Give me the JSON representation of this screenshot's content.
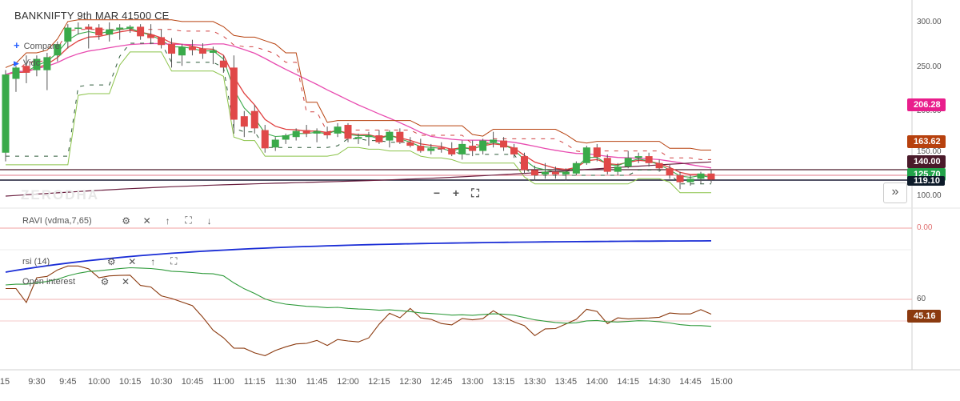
{
  "title": "BANKNIFTY 9th MAR 41500 CE",
  "toolbar": {
    "compare_label": "Compare",
    "indicator_label": "Vidc"
  },
  "watermark": "ZERODHA",
  "zoom": {
    "minus": "−",
    "plus": "+",
    "reset": "⛶"
  },
  "scroll_button": "»",
  "price_axis": {
    "ticks": [
      {
        "value": 300,
        "label": "300.00"
      },
      {
        "value": 250,
        "label": "250.00"
      },
      {
        "value": 200,
        "label": "200.00"
      },
      {
        "value": 150,
        "label": "150.00"
      },
      {
        "value": 100,
        "label": "100.00"
      }
    ]
  },
  "price_tags": [
    {
      "label": "206.28",
      "value": 206.28,
      "color": "#e91e8c"
    },
    {
      "label": "163.62",
      "value": 163.62,
      "color": "#b7410e"
    },
    {
      "label": "140.00",
      "value": 140.0,
      "color": "#4a1a2a"
    },
    {
      "label": "125.70",
      "value": 125.7,
      "color": "#22a34a"
    },
    {
      "label": "119.10",
      "value": 119.1,
      "color": "#0d1b2a"
    }
  ],
  "indicators": [
    {
      "name": "RAVI (vdma,7,65)",
      "controls": [
        "gear-icon",
        "close-icon",
        "up-icon",
        "expand-icon",
        "down-icon"
      ]
    },
    {
      "name": "rsi (14)",
      "controls": [
        "gear-icon",
        "close-icon",
        "up-icon",
        "expand-icon"
      ]
    },
    {
      "name": "Open interest",
      "controls": [
        "gear-icon",
        "close-icon"
      ]
    }
  ],
  "ravi_axis": {
    "label": "0.00",
    "value": 0
  },
  "rsi_axis": {
    "label": "60",
    "value": 60
  },
  "rsi_tag": {
    "label": "45.16",
    "value": 45.16,
    "color": "#8b3a0f"
  },
  "time_axis": [
    "15",
    "9:30",
    "9:45",
    "10:00",
    "10:15",
    "10:30",
    "10:45",
    "11:00",
    "11:15",
    "11:30",
    "11:45",
    "12:00",
    "12:15",
    "12:30",
    "12:45",
    "13:00",
    "13:15",
    "13:30",
    "13:45",
    "14:00",
    "14:15",
    "14:30",
    "14:45",
    "15:00"
  ],
  "chart_data": {
    "type": "candlestick",
    "title": "BANKNIFTY 9th MAR 41500 CE",
    "interval_minutes": 5,
    "ylim": [
      95,
      320
    ],
    "candles": [
      {
        "t": "9:15",
        "o": 150,
        "h": 245,
        "l": 140,
        "c": 240
      },
      {
        "t": "9:20",
        "o": 235,
        "h": 250,
        "l": 220,
        "c": 248
      },
      {
        "t": "9:25",
        "o": 250,
        "h": 262,
        "l": 230,
        "c": 242
      },
      {
        "t": "9:30",
        "o": 245,
        "h": 262,
        "l": 238,
        "c": 258
      },
      {
        "t": "9:35",
        "o": 245,
        "h": 265,
        "l": 222,
        "c": 260
      },
      {
        "t": "9:40",
        "o": 262,
        "h": 278,
        "l": 255,
        "c": 275
      },
      {
        "t": "9:45",
        "o": 278,
        "h": 298,
        "l": 270,
        "c": 294
      },
      {
        "t": "9:50",
        "o": 293,
        "h": 300,
        "l": 286,
        "c": 294
      },
      {
        "t": "9:55",
        "o": 295,
        "h": 298,
        "l": 270,
        "c": 292
      },
      {
        "t": "10:00",
        "o": 294,
        "h": 298,
        "l": 280,
        "c": 285
      },
      {
        "t": "10:05",
        "o": 286,
        "h": 300,
        "l": 278,
        "c": 292
      },
      {
        "t": "10:10",
        "o": 292,
        "h": 298,
        "l": 280,
        "c": 294
      },
      {
        "t": "10:15",
        "o": 293,
        "h": 297,
        "l": 288,
        "c": 295
      },
      {
        "t": "10:20",
        "o": 295,
        "h": 298,
        "l": 280,
        "c": 284
      },
      {
        "t": "10:25",
        "o": 286,
        "h": 298,
        "l": 275,
        "c": 282
      },
      {
        "t": "10:30",
        "o": 283,
        "h": 292,
        "l": 270,
        "c": 274
      },
      {
        "t": "10:35",
        "o": 275,
        "h": 282,
        "l": 248,
        "c": 264
      },
      {
        "t": "10:40",
        "o": 262,
        "h": 275,
        "l": 250,
        "c": 272
      },
      {
        "t": "10:45",
        "o": 272,
        "h": 280,
        "l": 262,
        "c": 268
      },
      {
        "t": "10:50",
        "o": 270,
        "h": 276,
        "l": 258,
        "c": 264
      },
      {
        "t": "10:55",
        "o": 265,
        "h": 272,
        "l": 252,
        "c": 268
      },
      {
        "t": "11:00",
        "o": 256,
        "h": 262,
        "l": 242,
        "c": 248
      },
      {
        "t": "11:05",
        "o": 248,
        "h": 262,
        "l": 172,
        "c": 188
      },
      {
        "t": "11:10",
        "o": 192,
        "h": 198,
        "l": 168,
        "c": 180
      },
      {
        "t": "11:15",
        "o": 198,
        "h": 205,
        "l": 172,
        "c": 178
      },
      {
        "t": "11:20",
        "o": 176,
        "h": 182,
        "l": 150,
        "c": 155
      },
      {
        "t": "11:25",
        "o": 156,
        "h": 168,
        "l": 152,
        "c": 165
      },
      {
        "t": "11:30",
        "o": 165,
        "h": 172,
        "l": 160,
        "c": 170
      },
      {
        "t": "11:35",
        "o": 168,
        "h": 178,
        "l": 164,
        "c": 175
      },
      {
        "t": "11:40",
        "o": 176,
        "h": 182,
        "l": 168,
        "c": 172
      },
      {
        "t": "11:45",
        "o": 172,
        "h": 178,
        "l": 162,
        "c": 175
      },
      {
        "t": "11:50",
        "o": 174,
        "h": 180,
        "l": 166,
        "c": 170
      },
      {
        "t": "11:55",
        "o": 172,
        "h": 184,
        "l": 168,
        "c": 180
      },
      {
        "t": "12:00",
        "o": 182,
        "h": 184,
        "l": 162,
        "c": 166
      },
      {
        "t": "12:05",
        "o": 166,
        "h": 172,
        "l": 160,
        "c": 168
      },
      {
        "t": "12:10",
        "o": 168,
        "h": 174,
        "l": 158,
        "c": 170
      },
      {
        "t": "12:15",
        "o": 170,
        "h": 176,
        "l": 160,
        "c": 162
      },
      {
        "t": "12:20",
        "o": 164,
        "h": 176,
        "l": 156,
        "c": 174
      },
      {
        "t": "12:25",
        "o": 174,
        "h": 178,
        "l": 160,
        "c": 162
      },
      {
        "t": "12:30",
        "o": 162,
        "h": 168,
        "l": 156,
        "c": 158
      },
      {
        "t": "12:35",
        "o": 158,
        "h": 166,
        "l": 150,
        "c": 152
      },
      {
        "t": "12:40",
        "o": 152,
        "h": 160,
        "l": 148,
        "c": 155
      },
      {
        "t": "12:45",
        "o": 156,
        "h": 162,
        "l": 150,
        "c": 154
      },
      {
        "t": "12:50",
        "o": 155,
        "h": 162,
        "l": 146,
        "c": 148
      },
      {
        "t": "12:55",
        "o": 148,
        "h": 164,
        "l": 142,
        "c": 160
      },
      {
        "t": "13:00",
        "o": 158,
        "h": 164,
        "l": 146,
        "c": 152
      },
      {
        "t": "13:05",
        "o": 152,
        "h": 166,
        "l": 148,
        "c": 164
      },
      {
        "t": "13:10",
        "o": 162,
        "h": 174,
        "l": 156,
        "c": 165
      },
      {
        "t": "13:15",
        "o": 164,
        "h": 168,
        "l": 152,
        "c": 156
      },
      {
        "t": "13:20",
        "o": 156,
        "h": 160,
        "l": 144,
        "c": 148
      },
      {
        "t": "13:25",
        "o": 146,
        "h": 150,
        "l": 126,
        "c": 130
      },
      {
        "t": "13:30",
        "o": 130,
        "h": 135,
        "l": 118,
        "c": 124
      },
      {
        "t": "13:35",
        "o": 125,
        "h": 138,
        "l": 120,
        "c": 128
      },
      {
        "t": "13:40",
        "o": 128,
        "h": 134,
        "l": 120,
        "c": 125
      },
      {
        "t": "13:45",
        "o": 125,
        "h": 132,
        "l": 118,
        "c": 128
      },
      {
        "t": "13:50",
        "o": 126,
        "h": 140,
        "l": 124,
        "c": 138
      },
      {
        "t": "13:55",
        "o": 138,
        "h": 158,
        "l": 136,
        "c": 156
      },
      {
        "t": "14:00",
        "o": 156,
        "h": 160,
        "l": 140,
        "c": 145
      },
      {
        "t": "14:05",
        "o": 144,
        "h": 148,
        "l": 125,
        "c": 128
      },
      {
        "t": "14:10",
        "o": 128,
        "h": 138,
        "l": 124,
        "c": 134
      },
      {
        "t": "14:15",
        "o": 134,
        "h": 152,
        "l": 132,
        "c": 144
      },
      {
        "t": "14:20",
        "o": 144,
        "h": 150,
        "l": 138,
        "c": 146
      },
      {
        "t": "14:25",
        "o": 146,
        "h": 150,
        "l": 134,
        "c": 138
      },
      {
        "t": "14:30",
        "o": 138,
        "h": 142,
        "l": 128,
        "c": 132
      },
      {
        "t": "14:35",
        "o": 132,
        "h": 136,
        "l": 120,
        "c": 124
      },
      {
        "t": "14:40",
        "o": 124,
        "h": 128,
        "l": 108,
        "c": 116
      },
      {
        "t": "14:45",
        "o": 116,
        "h": 124,
        "l": 112,
        "c": 120
      },
      {
        "t": "14:50",
        "o": 120,
        "h": 128,
        "l": 114,
        "c": 126
      },
      {
        "t": "14:55",
        "o": 126,
        "h": 130,
        "l": 115,
        "c": 119
      }
    ]
  }
}
